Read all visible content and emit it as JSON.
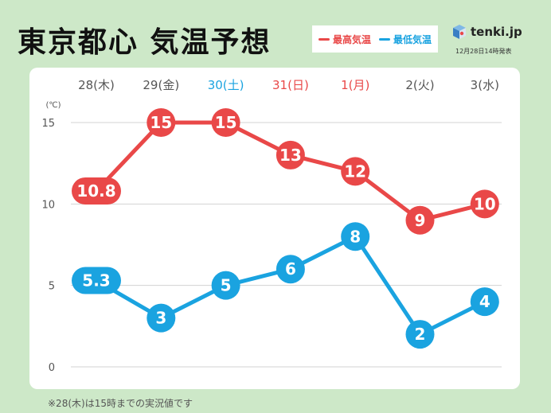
{
  "header": {
    "title": "東京都心 気温予想",
    "brand": "tenki.jp",
    "issued": "12月28日14時発表"
  },
  "footnote": "※28(木)は15時までの実況値です",
  "colors": {
    "high": "#e94848",
    "low": "#1aa3e0",
    "saturday": "#1aa3e0",
    "holiday": "#e94848",
    "weekday": "#555555",
    "grid": "#d3d3d3"
  },
  "chart_data": {
    "type": "line",
    "title": "東京都心 気温予想",
    "ylabel": "(℃)",
    "ylim": [
      0,
      15
    ],
    "yticks": [
      0,
      5,
      10,
      15
    ],
    "grid": true,
    "legend": "top-right",
    "categories": [
      "28(木)",
      "29(金)",
      "30(土)",
      "31(日)",
      "1(月)",
      "2(火)",
      "3(水)"
    ],
    "category_kind": [
      "weekday",
      "weekday",
      "saturday",
      "holiday",
      "holiday",
      "weekday",
      "weekday"
    ],
    "series": [
      {
        "name": "最高気温",
        "key": "high",
        "values": [
          10.8,
          15,
          15,
          13,
          12,
          9,
          10
        ]
      },
      {
        "name": "最低気温",
        "key": "low",
        "values": [
          5.3,
          3,
          5,
          6,
          8,
          2,
          4
        ]
      }
    ]
  }
}
